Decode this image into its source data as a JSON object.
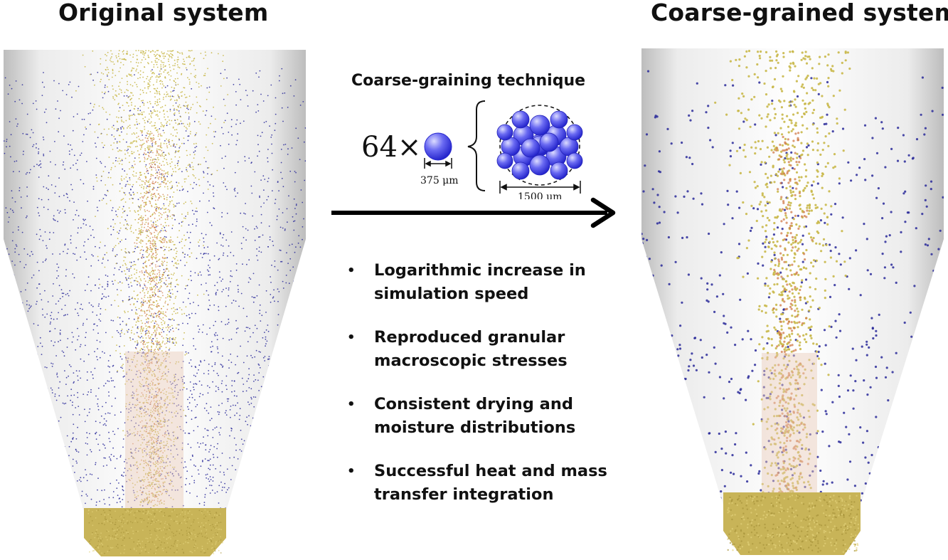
{
  "headings": {
    "left": "Original system",
    "right": "Coarse-grained system"
  },
  "technique": {
    "title": "Coarse-graining technique",
    "multiplier": "64×",
    "small_diameter": "375 μm",
    "large_diameter": "1500 μm"
  },
  "bullets": [
    "Logarithmic increase in simulation speed",
    "Reproduced granular macroscopic stresses",
    "Consistent drying and moisture distributions",
    "Successful heat and mass transfer integration"
  ],
  "colors": {
    "particle_blue": "#2a2a9a",
    "particle_yellow": "#c9b84a",
    "particle_orange": "#d07a48",
    "bed_gold": "#c8b458",
    "vessel_gray": "#d9d9d9",
    "sphere_blue": "#3b3bea"
  }
}
